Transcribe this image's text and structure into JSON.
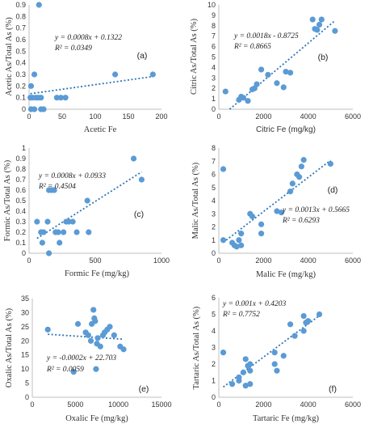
{
  "colors": {
    "point": "#5b9bd5",
    "trendline": "#2e75b6",
    "axis": "#bfbfbf",
    "text": "#333333"
  },
  "chart_data": [
    {
      "type": "scatter",
      "panel_label": "(a)",
      "xlabel": "Acetic Fe",
      "ylabel": "Acetic As/Total As (%)",
      "equation": "y = 0.0008x + 0.1322",
      "r2": "R² = 0.0349",
      "xlim": [
        0,
        200
      ],
      "ylim": [
        0,
        0.9
      ],
      "xticks": [
        0,
        50,
        100,
        150,
        200
      ],
      "yticks": [
        0,
        0.1,
        0.2,
        0.3,
        0.4,
        0.5,
        0.6,
        0.7,
        0.8,
        0.9
      ],
      "xtick_labels": [
        "0",
        "50",
        "100",
        "150",
        "200"
      ],
      "ytick_labels": [
        "0",
        "0.1",
        "0.2",
        "0.3",
        "0.4",
        "0.5",
        "0.6",
        "0.7",
        "0.8",
        "0.9"
      ],
      "trendline": {
        "slope": 0.0008,
        "intercept": 0.1322
      },
      "points": [
        [
          15,
          0.9
        ],
        [
          3,
          0.2
        ],
        [
          8,
          0.3
        ],
        [
          2,
          0.1
        ],
        [
          5,
          0.1
        ],
        [
          10,
          0.1
        ],
        [
          14,
          0.1
        ],
        [
          18,
          0.1
        ],
        [
          3,
          0
        ],
        [
          8,
          0
        ],
        [
          18,
          0
        ],
        [
          22,
          0
        ],
        [
          42,
          0.1
        ],
        [
          48,
          0.1
        ],
        [
          55,
          0.1
        ],
        [
          130,
          0.3
        ],
        [
          187,
          0.3
        ]
      ]
    },
    {
      "type": "scatter",
      "panel_label": "(b)",
      "xlabel": "Citric Fe (mg/kg)",
      "ylabel": "Citric As/Total As (%)",
      "equation": "y = 0.0018x - 0.8725",
      "r2": "R² = 0.8665",
      "xlim": [
        0,
        6000
      ],
      "ylim": [
        0,
        10
      ],
      "xticks": [
        0,
        2000,
        4000,
        6000
      ],
      "yticks": [
        0,
        1,
        2,
        3,
        4,
        5,
        6,
        7,
        8,
        9,
        10
      ],
      "xtick_labels": [
        "0",
        "2000",
        "4000",
        "6000"
      ],
      "ytick_labels": [
        "0",
        "1",
        "2",
        "3",
        "4",
        "5",
        "6",
        "7",
        "8",
        "9",
        "10"
      ],
      "trendline": {
        "slope": 0.0018,
        "intercept": -0.8725
      },
      "points": [
        [
          300,
          1.7
        ],
        [
          900,
          0.9
        ],
        [
          1000,
          1.2
        ],
        [
          1100,
          1.1
        ],
        [
          1300,
          0.8
        ],
        [
          1500,
          1.9
        ],
        [
          1600,
          2.0
        ],
        [
          1700,
          2.4
        ],
        [
          1900,
          3.8
        ],
        [
          2200,
          3.3
        ],
        [
          2600,
          2.5
        ],
        [
          2900,
          2.1
        ],
        [
          3000,
          3.6
        ],
        [
          3200,
          3.5
        ],
        [
          4200,
          8.6
        ],
        [
          4300,
          7.7
        ],
        [
          4400,
          7.6
        ],
        [
          4500,
          8.1
        ],
        [
          4600,
          8.6
        ],
        [
          5200,
          7.5
        ]
      ]
    },
    {
      "type": "scatter",
      "panel_label": "(c)",
      "xlabel": "Formic Fe (mg/kg)",
      "ylabel": "Formic As/Total As (%)",
      "equation": "y = 0.0008x + 0.0933",
      "r2": "R² = 0.4504",
      "xlim": [
        0,
        1000
      ],
      "ylim": [
        0,
        1
      ],
      "xticks": [
        0,
        500,
        1000
      ],
      "yticks": [
        0,
        0.1,
        0.2,
        0.3,
        0.4,
        0.5,
        0.6,
        0.7,
        0.8,
        0.9,
        1
      ],
      "xtick_labels": [
        "0",
        "500",
        "1000"
      ],
      "ytick_labels": [
        "0",
        "0.1",
        "0.2",
        "0.3",
        "0.4",
        "0.5",
        "0.6",
        "0.7",
        "0.8",
        "0.9",
        "1"
      ],
      "trendline": {
        "slope": 0.0008,
        "intercept": 0.0933
      },
      "points": [
        [
          60,
          0.3
        ],
        [
          90,
          0.2
        ],
        [
          110,
          0.2
        ],
        [
          100,
          0.1
        ],
        [
          140,
          0.3
        ],
        [
          150,
          0
        ],
        [
          150,
          0.6
        ],
        [
          170,
          0.6
        ],
        [
          190,
          0.6
        ],
        [
          200,
          0.2
        ],
        [
          220,
          0.2
        ],
        [
          230,
          0.1
        ],
        [
          260,
          0.2
        ],
        [
          280,
          0.3
        ],
        [
          300,
          0.3
        ],
        [
          330,
          0.3
        ],
        [
          360,
          0.2
        ],
        [
          440,
          0.5
        ],
        [
          450,
          0.2
        ],
        [
          790,
          0.9
        ],
        [
          850,
          0.7
        ]
      ]
    },
    {
      "type": "scatter",
      "panel_label": "(d)",
      "xlabel": "Malic Fe (mg/kg)",
      "ylabel": "Malic As/Total As (%)",
      "equation": "y = 0.0013x + 0.5665",
      "r2": "R² = 0.6293",
      "xlim": [
        0,
        6000
      ],
      "ylim": [
        0,
        8
      ],
      "xticks": [
        0,
        2000,
        4000,
        6000
      ],
      "yticks": [
        0,
        1,
        2,
        3,
        4,
        5,
        6,
        7,
        8
      ],
      "xtick_labels": [
        "0",
        "2000",
        "4000",
        "6000"
      ],
      "ytick_labels": [
        "0",
        "1",
        "2",
        "3",
        "4",
        "5",
        "6",
        "7",
        "8"
      ],
      "trendline": {
        "slope": 0.0013,
        "intercept": 0.5665
      },
      "points": [
        [
          200,
          6.4
        ],
        [
          200,
          1.0
        ],
        [
          600,
          0.8
        ],
        [
          700,
          0.6
        ],
        [
          800,
          0.5
        ],
        [
          900,
          1.0
        ],
        [
          1000,
          1.5
        ],
        [
          1000,
          0.6
        ],
        [
          1400,
          3.0
        ],
        [
          1500,
          2.8
        ],
        [
          1900,
          2.2
        ],
        [
          1900,
          1.5
        ],
        [
          2600,
          3.2
        ],
        [
          2800,
          3.1
        ],
        [
          3200,
          4.7
        ],
        [
          3300,
          5.3
        ],
        [
          3500,
          6.0
        ],
        [
          3600,
          5.8
        ],
        [
          3700,
          6.6
        ],
        [
          3800,
          7.1
        ],
        [
          5000,
          6.8
        ]
      ]
    },
    {
      "type": "scatter",
      "panel_label": "(e)",
      "xlabel": "Oxalic Fe (mg/kg)",
      "ylabel": "Oxalic As/Total As (%)",
      "equation": "y = -0.0002x + 22.703",
      "r2": "R² = 0.0059",
      "xlim": [
        0,
        15000
      ],
      "ylim": [
        0,
        35
      ],
      "xticks": [
        0,
        5000,
        10000,
        15000
      ],
      "yticks": [
        0,
        5,
        10,
        15,
        20,
        25,
        30,
        35
      ],
      "xtick_labels": [
        "0",
        "5000",
        "10000",
        "15000"
      ],
      "ytick_labels": [
        "0",
        "5",
        "10",
        "15",
        "20",
        "25",
        "30",
        "35"
      ],
      "trendline": {
        "slope": -0.0002,
        "intercept": 22.703
      },
      "points": [
        [
          1800,
          24
        ],
        [
          4800,
          9
        ],
        [
          5300,
          26
        ],
        [
          6200,
          23
        ],
        [
          6500,
          22
        ],
        [
          6800,
          20
        ],
        [
          6900,
          26
        ],
        [
          7100,
          31
        ],
        [
          7200,
          28
        ],
        [
          7300,
          27
        ],
        [
          7400,
          10
        ],
        [
          7500,
          19
        ],
        [
          7600,
          21
        ],
        [
          7900,
          18
        ],
        [
          8200,
          22
        ],
        [
          8400,
          23
        ],
        [
          8700,
          24
        ],
        [
          9000,
          25
        ],
        [
          9500,
          22
        ],
        [
          10200,
          18
        ],
        [
          10600,
          17
        ]
      ]
    },
    {
      "type": "scatter",
      "panel_label": "(f)",
      "xlabel": "Tartaric Fe (mg/kg)",
      "ylabel": "Tartaric As/Total As (%)",
      "equation": "y = 0.001x + 0.4203",
      "r2": "R² = 0.7752",
      "xlim": [
        0,
        6000
      ],
      "ylim": [
        0,
        6
      ],
      "xticks": [
        0,
        2000,
        4000,
        6000
      ],
      "yticks": [
        0,
        1,
        2,
        3,
        4,
        5,
        6
      ],
      "xtick_labels": [
        "0",
        "2000",
        "4000",
        "6000"
      ],
      "ytick_labels": [
        "0",
        "1",
        "2",
        "3",
        "4",
        "5",
        "6"
      ],
      "trendline": {
        "slope": 0.001,
        "intercept": 0.4203
      },
      "points": [
        [
          200,
          2.7
        ],
        [
          600,
          0.8
        ],
        [
          900,
          1.2
        ],
        [
          900,
          1.0
        ],
        [
          1100,
          1.5
        ],
        [
          1200,
          2.3
        ],
        [
          1200,
          0.7
        ],
        [
          1300,
          1.9
        ],
        [
          1400,
          1.6
        ],
        [
          1400,
          0.8
        ],
        [
          1400,
          2.0
        ],
        [
          2500,
          2.0
        ],
        [
          2500,
          2.7
        ],
        [
          2600,
          1.6
        ],
        [
          2900,
          2.5
        ],
        [
          3200,
          4.4
        ],
        [
          3400,
          3.7
        ],
        [
          3800,
          4.9
        ],
        [
          3800,
          4.0
        ],
        [
          3900,
          4.5
        ],
        [
          4000,
          4.6
        ],
        [
          4500,
          5.0
        ]
      ]
    }
  ]
}
